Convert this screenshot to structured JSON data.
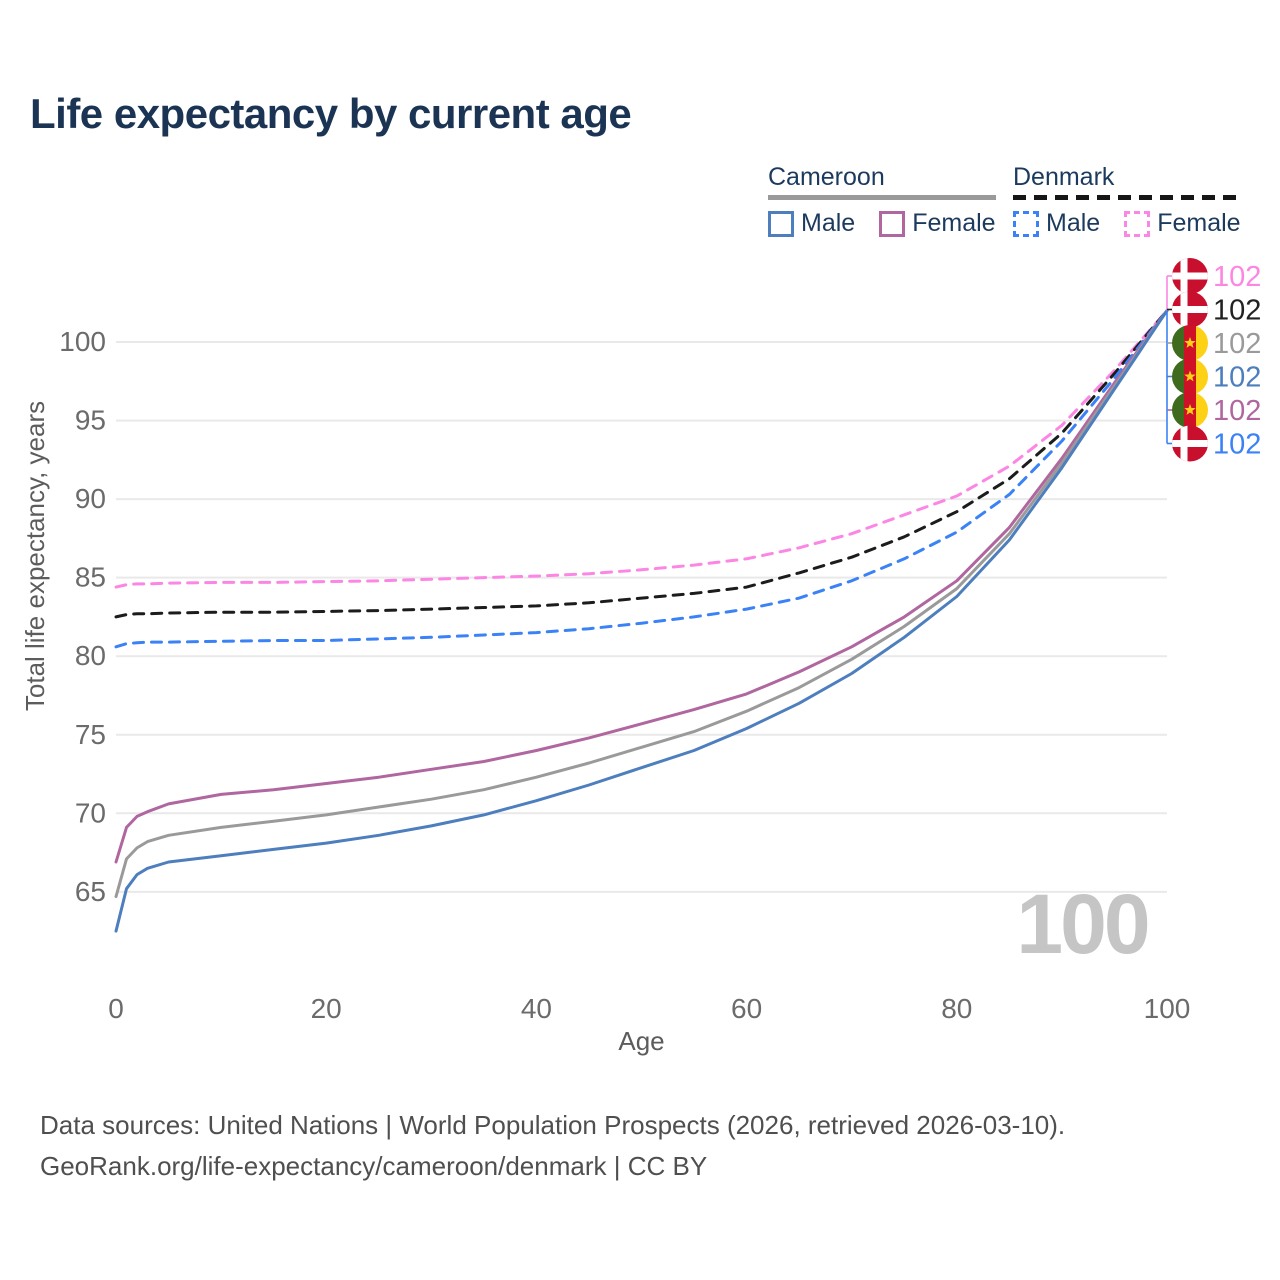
{
  "title": "Life expectancy by current age",
  "legend": {
    "groups": [
      {
        "label": "Cameroon",
        "line_style": "solid",
        "underline_color": "#9a9a9a",
        "items": [
          {
            "label": "Male",
            "color": "#4d7ebe"
          },
          {
            "label": "Female",
            "color": "#b0669f"
          }
        ]
      },
      {
        "label": "Denmark",
        "line_style": "dashed",
        "underline_color": "#161616",
        "items": [
          {
            "label": "Male",
            "color": "#3b82f6"
          },
          {
            "label": "Female",
            "color": "#fc86e3"
          }
        ]
      }
    ]
  },
  "chart_data": {
    "type": "line",
    "title": "Life expectancy by current age",
    "xlabel": "Age",
    "ylabel": "Total life expectancy, years",
    "xlim": [
      0,
      100
    ],
    "ylim": [
      62,
      103
    ],
    "xticks": [
      0,
      20,
      40,
      60,
      80,
      100
    ],
    "yticks": [
      65,
      70,
      75,
      80,
      85,
      90,
      95,
      100
    ],
    "grid": "horizontal",
    "watermark": "100",
    "x": [
      0,
      1,
      2,
      3,
      5,
      10,
      15,
      20,
      25,
      30,
      35,
      40,
      45,
      50,
      55,
      60,
      65,
      70,
      75,
      80,
      85,
      90,
      95,
      100
    ],
    "series": [
      {
        "name": "Denmark Female",
        "country": "Denmark",
        "sex": "Female",
        "color": "#fc86e3",
        "dash": true,
        "values": [
          84.4,
          84.55,
          84.6,
          84.6,
          84.65,
          84.7,
          84.7,
          84.75,
          84.8,
          84.9,
          85.0,
          85.1,
          85.25,
          85.5,
          85.8,
          86.2,
          86.9,
          87.8,
          89.0,
          90.2,
          92.1,
          94.7,
          98.2,
          102
        ]
      },
      {
        "name": "Denmark Both sexes",
        "country": "Denmark",
        "sex": "Both sexes",
        "color": "#1c1c1c",
        "dash": true,
        "values": [
          82.5,
          82.65,
          82.7,
          82.7,
          82.75,
          82.8,
          82.8,
          82.85,
          82.9,
          83.0,
          83.1,
          83.2,
          83.4,
          83.7,
          84.0,
          84.4,
          85.3,
          86.3,
          87.6,
          89.2,
          91.3,
          94.2,
          98.0,
          102
        ]
      },
      {
        "name": "Denmark Male",
        "country": "Denmark",
        "sex": "Male",
        "color": "#3b82f6",
        "dash": true,
        "values": [
          80.6,
          80.8,
          80.85,
          80.9,
          80.9,
          80.95,
          81.0,
          81.0,
          81.1,
          81.2,
          81.35,
          81.5,
          81.75,
          82.1,
          82.5,
          83.0,
          83.7,
          84.8,
          86.2,
          87.9,
          90.3,
          93.7,
          97.7,
          102
        ]
      },
      {
        "name": "Cameroon Female",
        "country": "Cameroon",
        "sex": "Female",
        "color": "#b0669f",
        "dash": false,
        "values": [
          66.9,
          69.1,
          69.8,
          70.1,
          70.6,
          71.2,
          71.5,
          71.9,
          72.3,
          72.8,
          73.3,
          74.0,
          74.8,
          75.7,
          76.6,
          77.6,
          79.0,
          80.6,
          82.5,
          84.8,
          88.2,
          92.6,
          97.4,
          102
        ]
      },
      {
        "name": "Cameroon Both sexes",
        "country": "Cameroon",
        "sex": "Both sexes",
        "color": "#9a9a9a",
        "dash": false,
        "values": [
          64.7,
          67.1,
          67.8,
          68.2,
          68.6,
          69.1,
          69.5,
          69.9,
          70.4,
          70.9,
          71.5,
          72.3,
          73.2,
          74.2,
          75.2,
          76.5,
          78.0,
          79.8,
          81.9,
          84.3,
          87.8,
          92.3,
          97.2,
          102
        ]
      },
      {
        "name": "Cameroon Male",
        "country": "Cameroon",
        "sex": "Male",
        "color": "#4d7ebe",
        "dash": false,
        "values": [
          62.5,
          65.2,
          66.1,
          66.5,
          66.9,
          67.3,
          67.7,
          68.1,
          68.6,
          69.2,
          69.9,
          70.8,
          71.8,
          72.9,
          74.0,
          75.4,
          77.0,
          78.9,
          81.2,
          83.8,
          87.4,
          92.0,
          97.0,
          102
        ]
      }
    ],
    "end_labels": [
      {
        "series": "Denmark Female",
        "flag": "denmark",
        "text": "102",
        "color": "#fc86e3"
      },
      {
        "series": "Denmark Both sexes",
        "flag": "denmark",
        "text": "102",
        "color": "#222222"
      },
      {
        "series": "Cameroon Both sexes",
        "flag": "cameroon",
        "text": "102",
        "color": "#9a9a9a"
      },
      {
        "series": "Cameroon Male",
        "flag": "cameroon",
        "text": "102",
        "color": "#4d7ebe"
      },
      {
        "series": "Cameroon Female",
        "flag": "cameroon",
        "text": "102",
        "color": "#b0669f"
      },
      {
        "series": "Denmark Male",
        "flag": "denmark",
        "text": "102",
        "color": "#3b82f6"
      }
    ],
    "flag_colors": {
      "denmark": {
        "bg": "#c8102e",
        "cross": "#ffffff"
      },
      "cameroon": {
        "green": "#3f6b1e",
        "red": "#ce1126",
        "yellow": "#fcd116",
        "star": "#fcd116"
      }
    }
  },
  "footer": {
    "line1": "Data sources: United Nations | World Population Prospects (2026, retrieved 2026-03-10).",
    "line2": "GeoRank.org/life-expectancy/cameroon/denmark | CC BY"
  }
}
